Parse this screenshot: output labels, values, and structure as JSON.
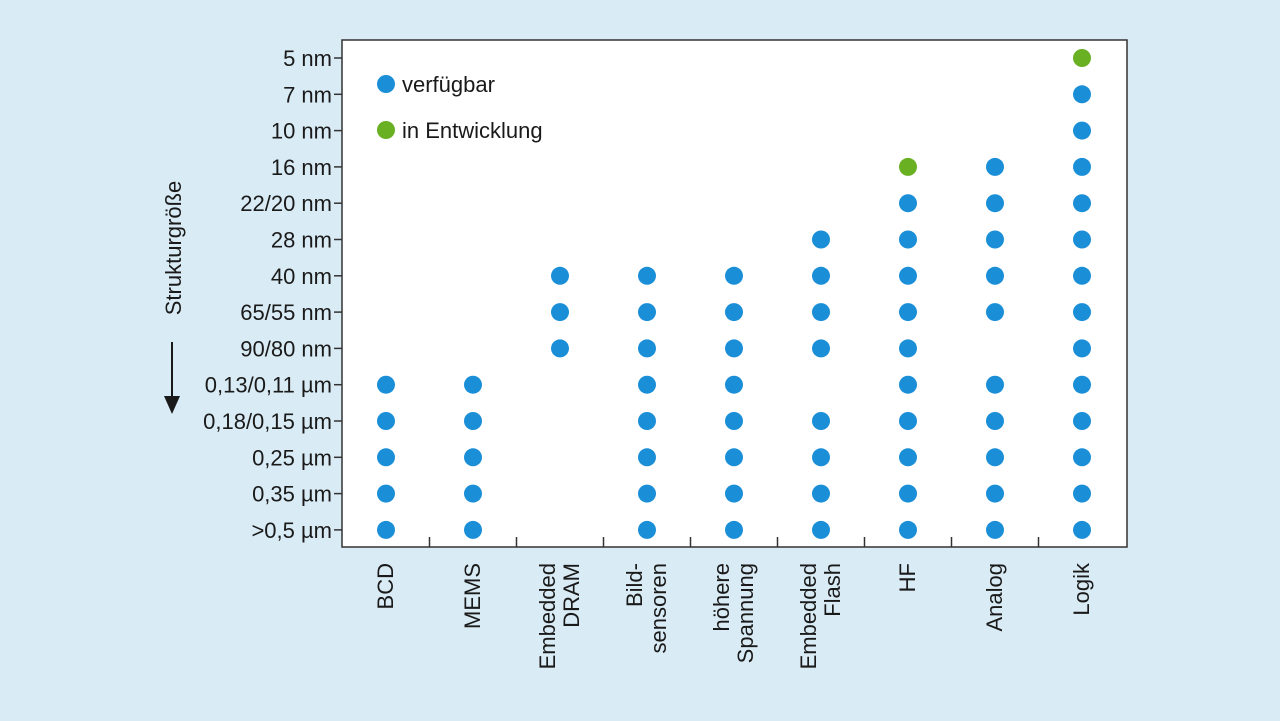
{
  "chart_data": {
    "type": "scatter",
    "ylabel": "Strukturgröße",
    "y_categories": [
      "5 nm",
      "7 nm",
      "10 nm",
      "16 nm",
      "22/20 nm",
      "28 nm",
      "40 nm",
      "65/55 nm",
      "90/80 nm",
      "0,13/0,11 µm",
      "0,18/0,15 µm",
      "0,25 µm",
      "0,35 µm",
      ">0,5 µm"
    ],
    "categories": [
      {
        "lines": [
          "BCD"
        ]
      },
      {
        "lines": [
          "MEMS"
        ]
      },
      {
        "lines": [
          "Embedded",
          "DRAM"
        ]
      },
      {
        "lines": [
          "Bild-",
          "sensoren"
        ]
      },
      {
        "lines": [
          "höhere",
          "Spannung"
        ]
      },
      {
        "lines": [
          "Embedded",
          "Flash"
        ]
      },
      {
        "lines": [
          "HF"
        ]
      },
      {
        "lines": [
          "Analog"
        ]
      },
      {
        "lines": [
          "Logik"
        ]
      }
    ],
    "series": [
      {
        "name": "verfügbar",
        "color": "#1a8fd8",
        "points": [
          [
            "BCD",
            "0,13/0,11 µm"
          ],
          [
            "BCD",
            "0,18/0,15 µm"
          ],
          [
            "BCD",
            "0,25 µm"
          ],
          [
            "BCD",
            "0,35 µm"
          ],
          [
            "BCD",
            ">0,5 µm"
          ],
          [
            "MEMS",
            "0,13/0,11 µm"
          ],
          [
            "MEMS",
            "0,18/0,15 µm"
          ],
          [
            "MEMS",
            "0,25 µm"
          ],
          [
            "MEMS",
            "0,35 µm"
          ],
          [
            "MEMS",
            ">0,5 µm"
          ],
          [
            "Embedded DRAM",
            "40 nm"
          ],
          [
            "Embedded DRAM",
            "65/55 nm"
          ],
          [
            "Embedded DRAM",
            "90/80 nm"
          ],
          [
            "Bildsensoren",
            "40 nm"
          ],
          [
            "Bildsensoren",
            "65/55 nm"
          ],
          [
            "Bildsensoren",
            "90/80 nm"
          ],
          [
            "Bildsensoren",
            "0,13/0,11 µm"
          ],
          [
            "Bildsensoren",
            "0,18/0,15 µm"
          ],
          [
            "Bildsensoren",
            "0,25 µm"
          ],
          [
            "Bildsensoren",
            "0,35 µm"
          ],
          [
            "Bildsensoren",
            ">0,5 µm"
          ],
          [
            "höhere Spannung",
            "40 nm"
          ],
          [
            "höhere Spannung",
            "65/55 nm"
          ],
          [
            "höhere Spannung",
            "90/80 nm"
          ],
          [
            "höhere Spannung",
            "0,13/0,11 µm"
          ],
          [
            "höhere Spannung",
            "0,18/0,15 µm"
          ],
          [
            "höhere Spannung",
            "0,25 µm"
          ],
          [
            "höhere Spannung",
            "0,35 µm"
          ],
          [
            "höhere Spannung",
            ">0,5 µm"
          ],
          [
            "Embedded Flash",
            "28 nm"
          ],
          [
            "Embedded Flash",
            "40 nm"
          ],
          [
            "Embedded Flash",
            "65/55 nm"
          ],
          [
            "Embedded Flash",
            "90/80 nm"
          ],
          [
            "Embedded Flash",
            "0,18/0,15 µm"
          ],
          [
            "Embedded Flash",
            "0,25 µm"
          ],
          [
            "Embedded Flash",
            "0,35 µm"
          ],
          [
            "Embedded Flash",
            ">0,5 µm"
          ],
          [
            "HF",
            "22/20 nm"
          ],
          [
            "HF",
            "28 nm"
          ],
          [
            "HF",
            "40 nm"
          ],
          [
            "HF",
            "65/55 nm"
          ],
          [
            "HF",
            "90/80 nm"
          ],
          [
            "HF",
            "0,13/0,11 µm"
          ],
          [
            "HF",
            "0,18/0,15 µm"
          ],
          [
            "HF",
            "0,25 µm"
          ],
          [
            "HF",
            "0,35 µm"
          ],
          [
            "HF",
            ">0,5 µm"
          ],
          [
            "Analog",
            "16 nm"
          ],
          [
            "Analog",
            "22/20 nm"
          ],
          [
            "Analog",
            "28 nm"
          ],
          [
            "Analog",
            "40 nm"
          ],
          [
            "Analog",
            "65/55 nm"
          ],
          [
            "Analog",
            "0,13/0,11 µm"
          ],
          [
            "Analog",
            "0,18/0,15 µm"
          ],
          [
            "Analog",
            "0,25 µm"
          ],
          [
            "Analog",
            "0,35 µm"
          ],
          [
            "Analog",
            ">0,5 µm"
          ],
          [
            "Logik",
            "7 nm"
          ],
          [
            "Logik",
            "10 nm"
          ],
          [
            "Logik",
            "16 nm"
          ],
          [
            "Logik",
            "22/20 nm"
          ],
          [
            "Logik",
            "28 nm"
          ],
          [
            "Logik",
            "40 nm"
          ],
          [
            "Logik",
            "65/55 nm"
          ],
          [
            "Logik",
            "90/80 nm"
          ],
          [
            "Logik",
            "0,13/0,11 µm"
          ],
          [
            "Logik",
            "0,18/0,15 µm"
          ],
          [
            "Logik",
            "0,25 µm"
          ],
          [
            "Logik",
            "0,35 µm"
          ],
          [
            "Logik",
            ">0,5 µm"
          ]
        ]
      },
      {
        "name": "in Entwicklung",
        "color": "#6ab023",
        "points": [
          [
            "HF",
            "16 nm"
          ],
          [
            "Logik",
            "5 nm"
          ]
        ]
      }
    ],
    "legend": "top-left",
    "grid": false
  }
}
